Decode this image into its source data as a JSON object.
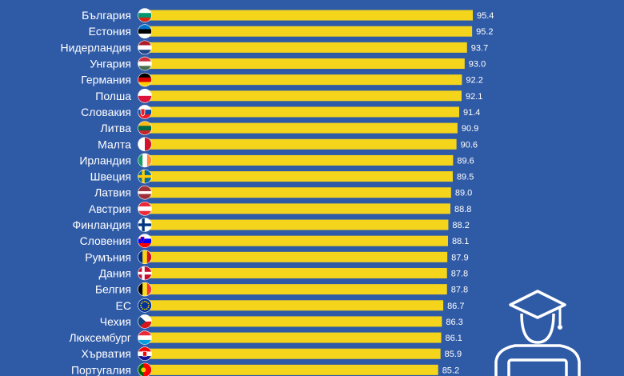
{
  "chart_data": {
    "type": "bar",
    "orientation": "horizontal",
    "title": "",
    "xlabel": "",
    "ylabel": "",
    "xlim": [
      0,
      95.4
    ],
    "grid": false,
    "legend": "none",
    "bar_color": "#f5d41c",
    "background_color": "#2f5aa6",
    "categories": [
      "България",
      "Естония",
      "Нидерландия",
      "Унгария",
      "Германия",
      "Полша",
      "Словакия",
      "Литва",
      "Малта",
      "Ирландия",
      "Швеция",
      "Латвия",
      "Австрия",
      "Финландия",
      "Словения",
      "Румъния",
      "Дания",
      "Белгия",
      "ЕС",
      "Чехия",
      "Люксембург",
      "Хърватия",
      "Португалия"
    ],
    "values": [
      95.4,
      95.2,
      93.7,
      93.0,
      92.2,
      92.1,
      91.4,
      90.9,
      90.6,
      89.6,
      89.5,
      89.0,
      88.8,
      88.2,
      88.1,
      87.9,
      87.8,
      87.8,
      86.7,
      86.3,
      86.1,
      85.9,
      85.2
    ],
    "value_labels": [
      "95.4",
      "95.2",
      "93.7",
      "93.0",
      "92.2",
      "92.1",
      "91.4",
      "90.9",
      "90.6",
      "89.6",
      "89.5",
      "89.0",
      "88.8",
      "88.2",
      "88.1",
      "87.9",
      "87.8",
      "87.8",
      "86.7",
      "86.3",
      "86.1",
      "85.9",
      "85.2"
    ],
    "flags": [
      "flag-bulgaria-icon",
      "flag-estonia-icon",
      "flag-netherlands-icon",
      "flag-hungary-icon",
      "flag-germany-icon",
      "flag-poland-icon",
      "flag-slovakia-icon",
      "flag-lithuania-icon",
      "flag-malta-icon",
      "flag-ireland-icon",
      "flag-sweden-icon",
      "flag-latvia-icon",
      "flag-austria-icon",
      "flag-finland-icon",
      "flag-slovenia-icon",
      "flag-romania-icon",
      "flag-denmark-icon",
      "flag-belgium-icon",
      "flag-eu-icon",
      "flag-czechia-icon",
      "flag-luxembourg-icon",
      "flag-croatia-icon",
      "flag-portugal-icon"
    ]
  },
  "decoration": {
    "icon": "graduate-with-laptop-icon"
  }
}
